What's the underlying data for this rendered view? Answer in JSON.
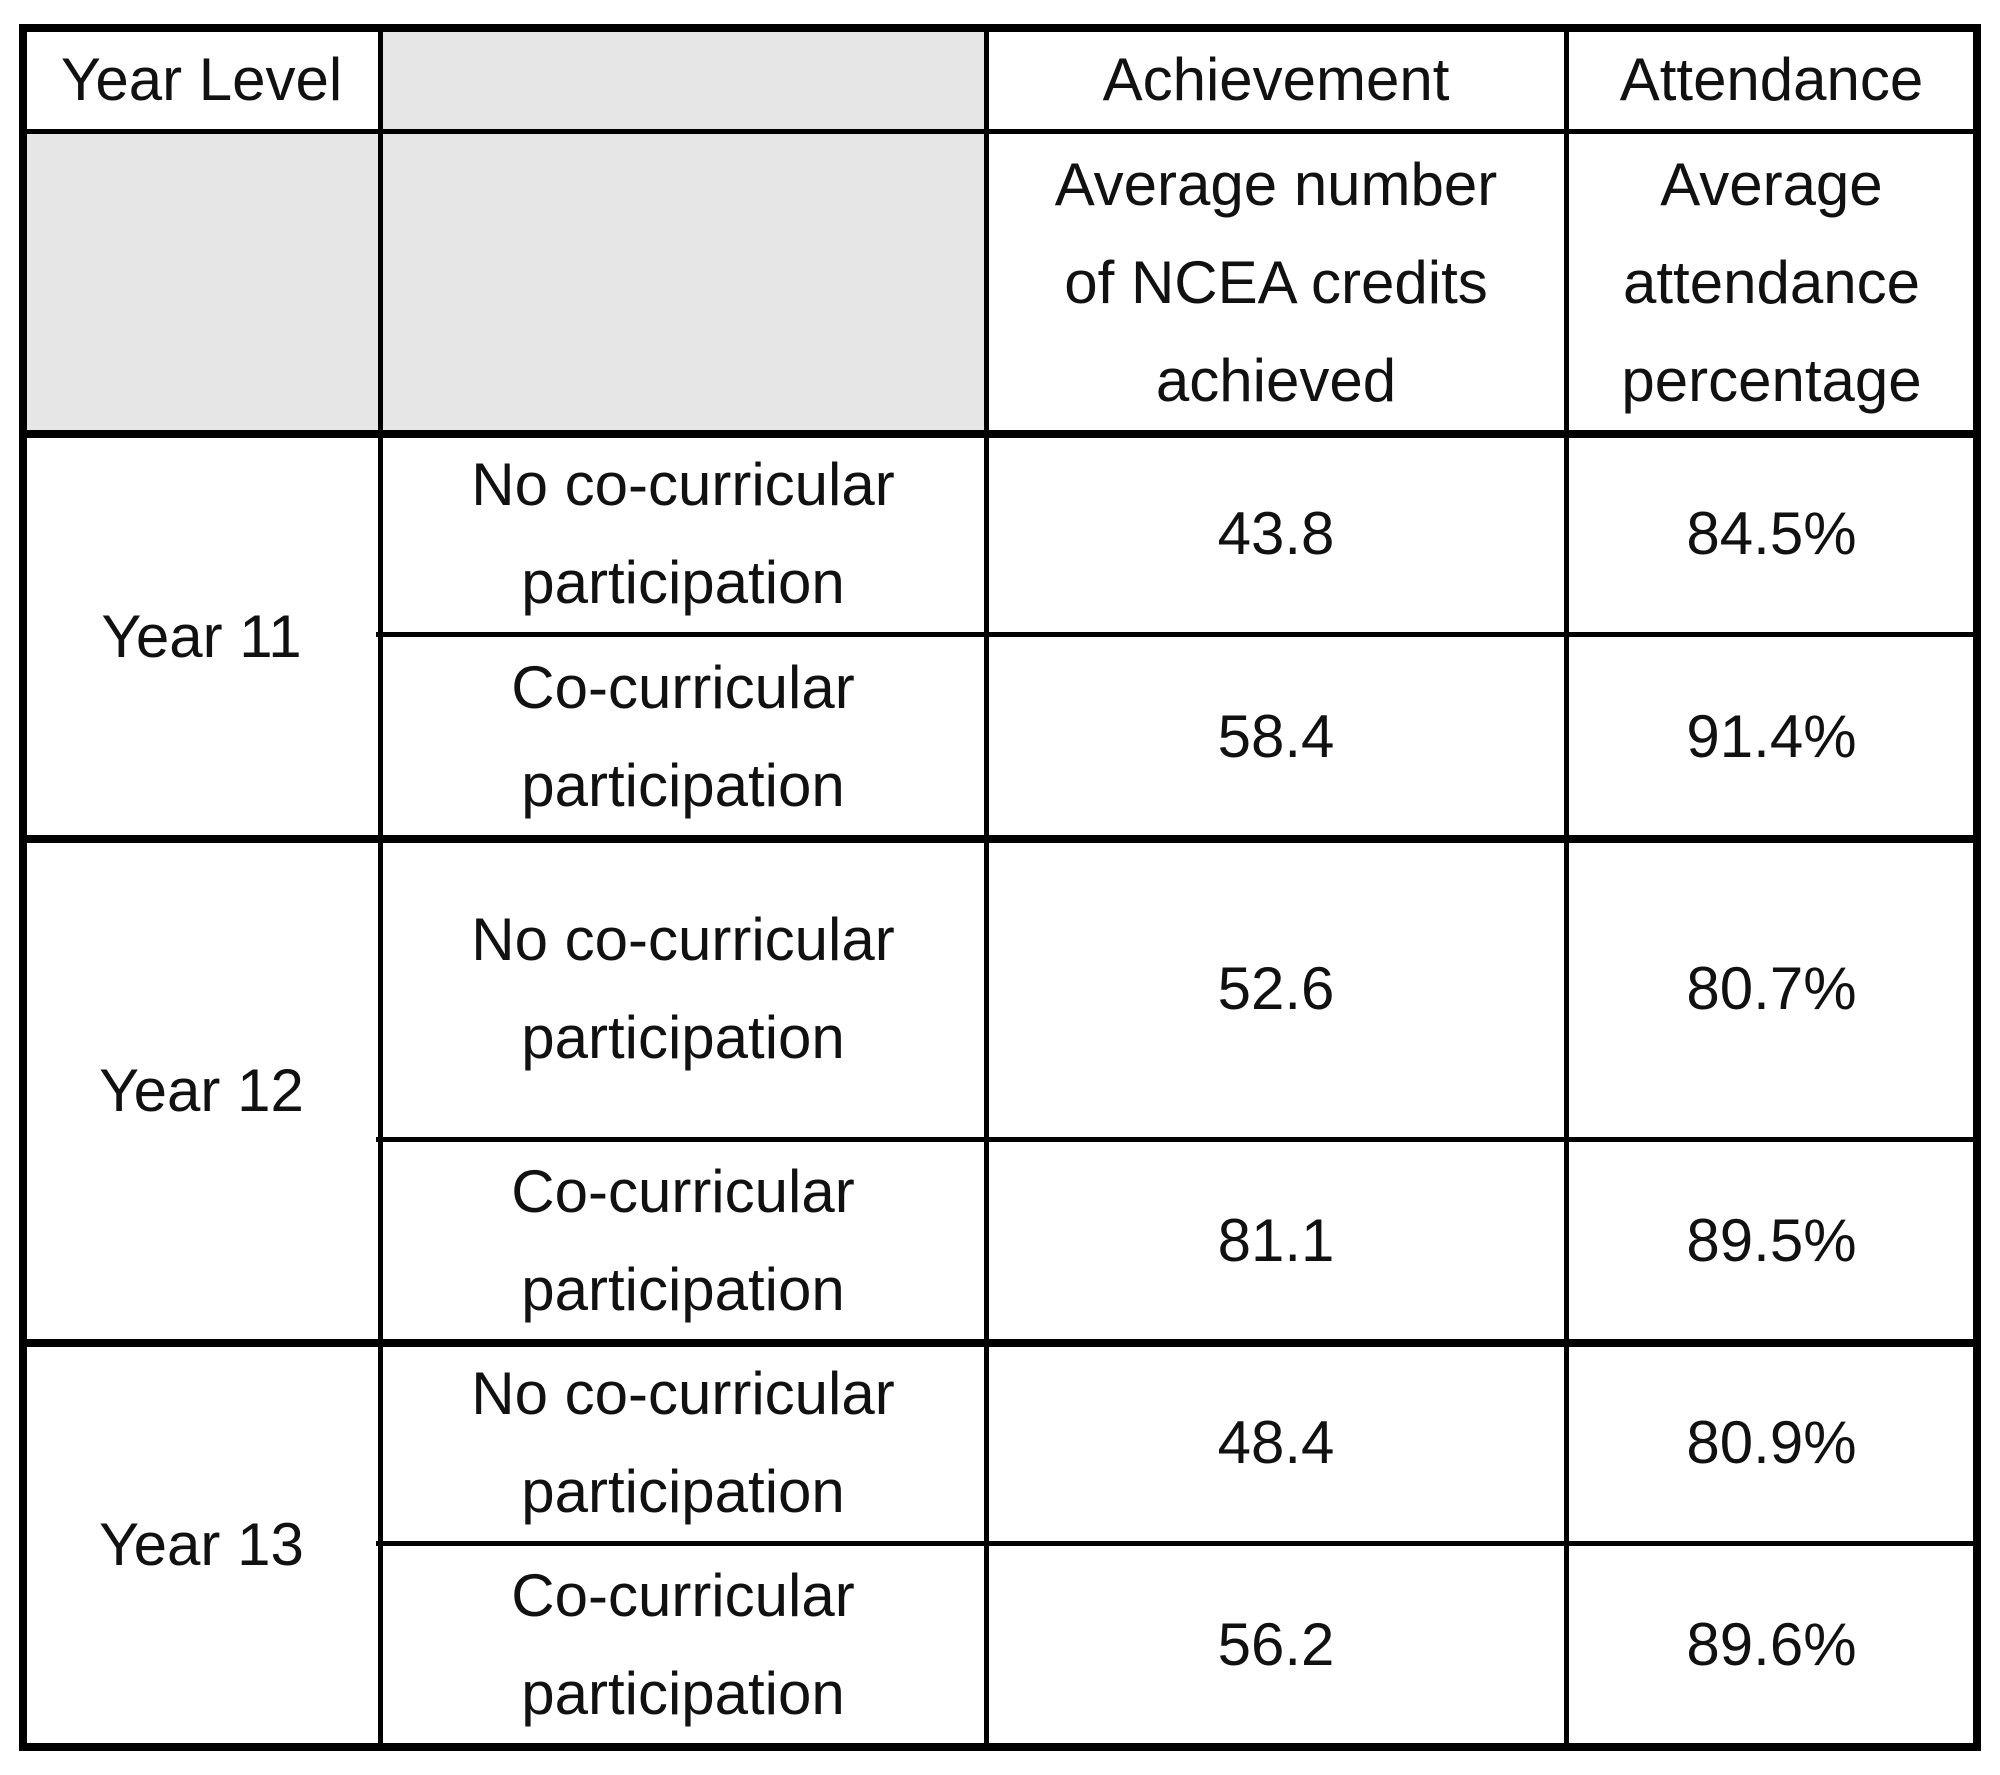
{
  "table": {
    "header": {
      "year_level": "Year Level",
      "achievement": "Achievement",
      "attendance": "Attendance",
      "achievement_desc": "Average number\nof NCEA credits\nachieved",
      "attendance_desc": "Average\nattendance\npercentage"
    },
    "groups": [
      {
        "year": "Year 11",
        "rows": [
          {
            "group": "No co-curricular\nparticipation",
            "credits": "43.8",
            "attendance": "84.5%"
          },
          {
            "group": "Co-curricular\nparticipation",
            "credits": "58.4",
            "attendance": "91.4%"
          }
        ]
      },
      {
        "year": "Year 12",
        "rows": [
          {
            "group": "No co-curricular\nparticipation",
            "credits": "52.6",
            "attendance": "80.7%"
          },
          {
            "group": "Co-curricular\nparticipation",
            "credits": "81.1",
            "attendance": "89.5%"
          }
        ]
      },
      {
        "year": "Year 13",
        "rows": [
          {
            "group": "No co-curricular\nparticipation",
            "credits": "48.4",
            "attendance": "80.9%"
          },
          {
            "group": "Co-curricular\nparticipation",
            "credits": "56.2",
            "attendance": "89.6%"
          }
        ]
      }
    ]
  }
}
